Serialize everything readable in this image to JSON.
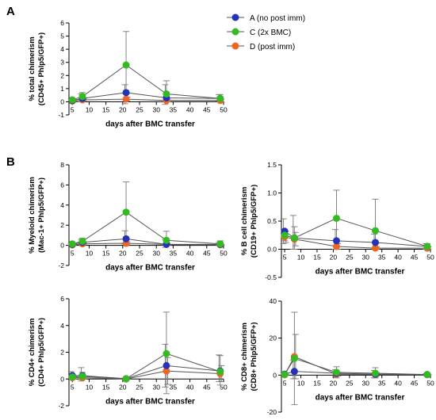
{
  "panel_letters": [
    "A",
    "B"
  ],
  "colors": {
    "A": "#2332b8",
    "C": "#33bb22",
    "D": "#ee6622",
    "line": "#555555",
    "err": "#777777"
  },
  "legend": [
    {
      "key": "A",
      "label": "A (no post imm)"
    },
    {
      "key": "C",
      "label": "C (2x BMC)"
    },
    {
      "key": "D",
      "label": "D (post imm)"
    }
  ],
  "chart_data": [
    {
      "id": "total",
      "type": "line",
      "xlabel": "days after  BMC transfer",
      "ylabel": [
        "% total chimerism",
        "(CD45+ Phlp5/GFP+)"
      ],
      "xlim": [
        4,
        50
      ],
      "ylim": [
        -1,
        6
      ],
      "xticks": [
        5,
        10,
        15,
        20,
        25,
        30,
        35,
        40,
        45,
        50
      ],
      "yticks": [
        -1,
        0,
        1,
        2,
        3,
        4,
        5,
        6
      ],
      "series": [
        {
          "key": "A",
          "x": [
            5,
            8,
            21,
            33,
            49
          ],
          "y": [
            0.1,
            0.25,
            0.7,
            0.3,
            0.25
          ],
          "err_low": [
            0.05,
            0.25,
            0.85,
            0.5,
            0.2
          ],
          "err_high": [
            0.1,
            0.35,
            0.6,
            1.0,
            0.3
          ]
        },
        {
          "key": "C",
          "x": [
            5,
            8,
            21,
            33,
            49
          ],
          "y": [
            0.15,
            0.4,
            2.8,
            0.6,
            0.25
          ],
          "err_low": [
            0.1,
            0.3,
            2.6,
            0.5,
            0.2
          ],
          "err_high": [
            0.1,
            0.3,
            2.55,
            1.0,
            0.3
          ]
        },
        {
          "key": "D",
          "x": [
            5,
            8,
            21,
            33,
            49
          ],
          "y": [
            0.05,
            0.15,
            0.2,
            0.1,
            0.1
          ],
          "err_low": [
            0.05,
            0.1,
            0.15,
            0.1,
            0.1
          ],
          "err_high": [
            0.05,
            0.1,
            0.15,
            0.1,
            0.1
          ]
        }
      ]
    },
    {
      "id": "myeloid",
      "type": "line",
      "xlabel": "days after  BMC transfer",
      "ylabel": [
        "% Myeloid chimerism",
        "(Mac-1+ Phlp5/GFP+)"
      ],
      "xlim": [
        4,
        50
      ],
      "ylim": [
        -2,
        8
      ],
      "xticks": [
        5,
        10,
        15,
        20,
        25,
        30,
        35,
        40,
        45,
        50
      ],
      "yticks": [
        -2,
        0,
        2,
        4,
        6,
        8
      ],
      "series": [
        {
          "key": "A",
          "x": [
            5,
            8,
            21,
            33,
            49
          ],
          "y": [
            0.1,
            0.3,
            0.65,
            0.1,
            0.1
          ],
          "err_low": [
            0.1,
            0.2,
            0.5,
            0.3,
            0.1
          ],
          "err_high": [
            0.1,
            0.3,
            0.8,
            0.5,
            0.2
          ]
        },
        {
          "key": "C",
          "x": [
            5,
            8,
            21,
            33,
            49
          ],
          "y": [
            0.15,
            0.4,
            3.3,
            0.5,
            0.15
          ],
          "err_low": [
            0.1,
            0.3,
            3.0,
            0.5,
            0.1
          ],
          "err_high": [
            0.1,
            0.3,
            3.0,
            0.9,
            0.3
          ]
        },
        {
          "key": "D",
          "x": [
            5,
            8,
            21,
            33,
            49
          ],
          "y": [
            0.05,
            0.15,
            0.2,
            0.1,
            0.05
          ],
          "err_low": [
            0.05,
            0.1,
            0.15,
            0.1,
            0.05
          ],
          "err_high": [
            0.05,
            0.1,
            0.15,
            0.1,
            0.05
          ]
        }
      ]
    },
    {
      "id": "bcell",
      "type": "line",
      "xlabel": "days after  BMC transfer",
      "ylabel": [
        "% B cell chimerism",
        "(CD19+ Phlp5/GFP+)"
      ],
      "xlim": [
        4,
        50
      ],
      "ylim": [
        -0.5,
        1.5
      ],
      "xticks": [
        5,
        10,
        15,
        20,
        25,
        30,
        35,
        40,
        45,
        50
      ],
      "yticks": [
        -0.5,
        0.0,
        0.5,
        1.0,
        1.5
      ],
      "ytick_labels": [
        "-0.5",
        "0.0",
        "0.5",
        "1.0",
        "1.5"
      ],
      "series": [
        {
          "key": "A",
          "x": [
            5,
            8,
            21,
            33,
            49
          ],
          "y": [
            0.32,
            0.2,
            0.15,
            0.12,
            0.05
          ],
          "err_low": [
            0.22,
            0.2,
            0.15,
            0.1,
            0.05
          ],
          "err_high": [
            0.22,
            0.4,
            0.2,
            0.15,
            0.05
          ]
        },
        {
          "key": "C",
          "x": [
            5,
            8,
            21,
            33,
            49
          ],
          "y": [
            0.25,
            0.2,
            0.55,
            0.33,
            0.05
          ],
          "err_low": [
            0.1,
            0.2,
            0.5,
            0.3,
            0.05
          ],
          "err_high": [
            0.1,
            0.2,
            0.5,
            0.56,
            0.05
          ]
        },
        {
          "key": "D",
          "x": [
            5,
            8,
            21,
            33,
            49
          ],
          "y": [
            0.22,
            0.18,
            0.05,
            0.02,
            0.02
          ],
          "err_low": [
            0.1,
            0.12,
            0.05,
            0.02,
            0.02
          ],
          "err_high": [
            0.1,
            0.12,
            0.05,
            0.02,
            0.02
          ]
        }
      ]
    },
    {
      "id": "cd4",
      "type": "line",
      "xlabel": "days after  BMC transfer",
      "ylabel": [
        "% CD4+ chimerism",
        "(CD4+ Phlp5/GFP+)"
      ],
      "xlim": [
        4,
        50
      ],
      "ylim": [
        -2,
        6
      ],
      "xticks": [
        5,
        10,
        15,
        20,
        25,
        30,
        35,
        40,
        45,
        50
      ],
      "yticks": [
        -2,
        0,
        2,
        4,
        6
      ],
      "series": [
        {
          "key": "A",
          "x": [
            5,
            8,
            21,
            33,
            49
          ],
          "y": [
            0.25,
            0.25,
            0.02,
            1.0,
            0.6
          ],
          "err_low": [
            0.3,
            0.4,
            0.02,
            1.6,
            0.8
          ],
          "err_high": [
            0.3,
            0.6,
            0.05,
            1.6,
            1.2
          ]
        },
        {
          "key": "C",
          "x": [
            5,
            8,
            21,
            33,
            49
          ],
          "y": [
            0.15,
            0.2,
            0.02,
            1.9,
            0.55
          ],
          "err_low": [
            0.1,
            0.2,
            0.02,
            3.0,
            1.0
          ],
          "err_high": [
            0.1,
            0.3,
            0.05,
            3.1,
            1.2
          ]
        },
        {
          "key": "D",
          "x": [
            5,
            8,
            21,
            33,
            49
          ],
          "y": [
            0.1,
            0.1,
            0.0,
            0.6,
            0.4
          ],
          "err_low": [
            0.1,
            0.1,
            0.02,
            1.0,
            0.6
          ],
          "err_high": [
            0.1,
            0.1,
            0.05,
            1.0,
            0.6
          ]
        }
      ]
    },
    {
      "id": "cd8",
      "type": "line",
      "xlabel": "days after  BMC transfer",
      "ylabel": [
        "% CD8+ chimerism",
        "(CD8+ Phlp5/GFP+)"
      ],
      "xlim": [
        4,
        50
      ],
      "ylim": [
        -20,
        40
      ],
      "xticks": [
        5,
        10,
        15,
        20,
        25,
        30,
        35,
        40,
        45,
        50
      ],
      "yticks": [
        -20,
        0,
        20,
        40
      ],
      "series": [
        {
          "key": "A",
          "x": [
            5,
            8,
            21,
            33,
            49
          ],
          "y": [
            0.5,
            2.0,
            1.0,
            0.5,
            0.3
          ],
          "err_low": [
            1.0,
            4.0,
            2.0,
            2.0,
            0.5
          ],
          "err_high": [
            1.0,
            6.0,
            2.0,
            2.0,
            0.5
          ]
        },
        {
          "key": "C",
          "x": [
            5,
            8,
            21,
            33,
            49
          ],
          "y": [
            0.3,
            9.0,
            1.5,
            1.0,
            0.3
          ],
          "err_low": [
            0.5,
            25.0,
            3.0,
            2.5,
            0.5
          ],
          "err_high": [
            0.5,
            25.0,
            3.0,
            3.0,
            0.5
          ]
        },
        {
          "key": "D",
          "x": [
            5,
            8,
            21,
            33,
            49
          ],
          "y": [
            0.2,
            10.0,
            0.5,
            0.3,
            0.2
          ],
          "err_low": [
            0.3,
            12.0,
            1.0,
            1.0,
            0.3
          ],
          "err_high": [
            0.3,
            12.0,
            1.0,
            1.0,
            0.3
          ]
        }
      ]
    }
  ]
}
